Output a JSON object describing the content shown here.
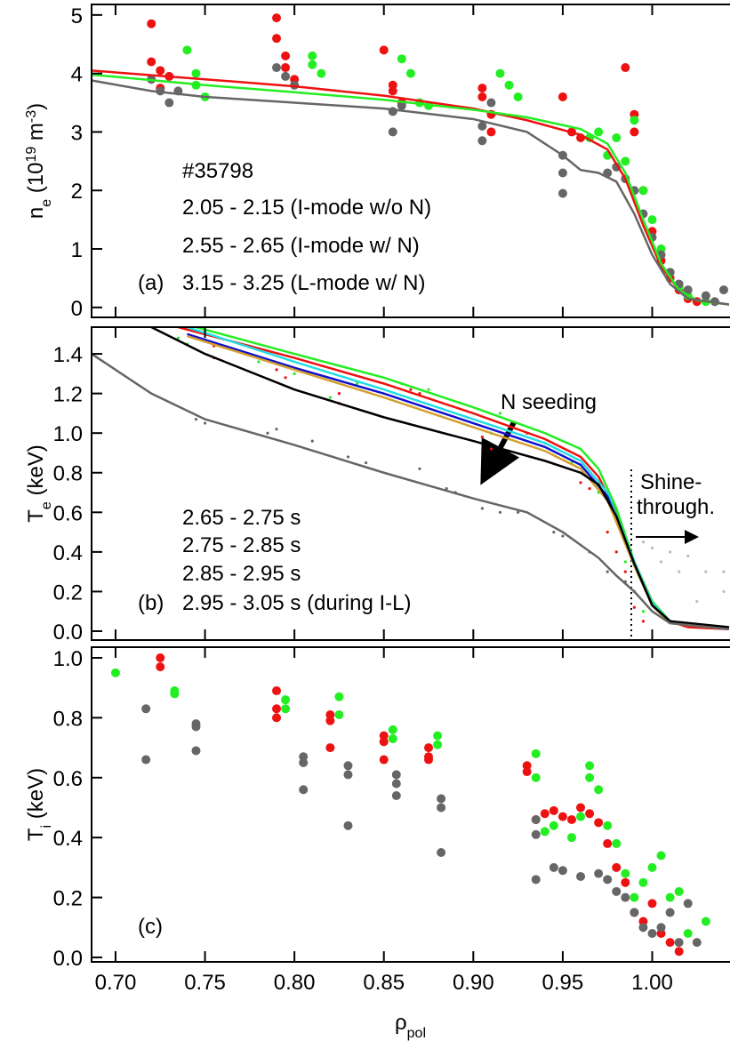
{
  "chart_data": [
    {
      "type": "scatter",
      "panel": "(a)",
      "ylabel": [
        {
          "text": "n"
        },
        {
          "text": "e",
          "shift": "sub"
        },
        {
          "text": " (10"
        },
        {
          "text": "19",
          "shift": "super"
        },
        {
          "text": " m"
        },
        {
          "text": "-3",
          "shift": "super"
        },
        {
          "text": ")"
        }
      ],
      "annotations": [
        "#35798"
      ],
      "xlim": [
        0.6866,
        1.043
      ],
      "ylim": [
        -0.17,
        5.18
      ],
      "yticks": [
        0,
        1,
        2,
        3,
        4,
        5
      ],
      "series": [
        {
          "color": "#ee1111",
          "mode": "markers",
          "x": [
            0.72,
            0.72,
            0.725,
            0.725,
            0.73,
            0.79,
            0.79,
            0.795,
            0.795,
            0.8,
            0.85,
            0.855,
            0.855,
            0.86,
            0.905,
            0.905,
            0.91,
            0.91,
            0.95,
            0.955,
            0.96,
            0.985,
            0.99,
            0.99,
            0.995,
            1.0,
            1.005,
            1.01,
            1.015,
            1.02,
            1.025
          ],
          "values": [
            4.85,
            4.2,
            4.05,
            3.75,
            3.95,
            4.95,
            4.6,
            4.3,
            4.1,
            3.9,
            4.4,
            3.8,
            3.7,
            3.5,
            3.75,
            3.6,
            3.3,
            3.0,
            3.6,
            3.0,
            2.9,
            4.1,
            3.3,
            3.0,
            2.0,
            1.3,
            0.8,
            0.5,
            0.3,
            0.15,
            0.1
          ]
        },
        {
          "color": "#22ee22",
          "mode": "markers",
          "x": [
            0.74,
            0.745,
            0.745,
            0.75,
            0.81,
            0.81,
            0.815,
            0.86,
            0.865,
            0.87,
            0.875,
            0.915,
            0.92,
            0.925,
            0.965,
            0.97,
            0.975,
            0.98,
            0.985,
            0.99,
            0.995,
            1.0,
            1.005,
            1.01,
            1.015,
            1.02,
            1.03
          ],
          "values": [
            4.4,
            4.0,
            3.8,
            3.6,
            4.3,
            4.15,
            4.0,
            4.25,
            4.0,
            3.5,
            3.45,
            4.0,
            3.8,
            3.6,
            2.9,
            3.0,
            2.6,
            2.9,
            2.5,
            3.2,
            2.0,
            1.5,
            1.0,
            0.6,
            0.35,
            0.2,
            0.1
          ]
        },
        {
          "color": "#666666",
          "mode": "markers",
          "x": [
            0.72,
            0.725,
            0.73,
            0.735,
            0.79,
            0.795,
            0.8,
            0.855,
            0.855,
            0.86,
            0.905,
            0.905,
            0.91,
            0.95,
            0.95,
            0.95,
            0.975,
            0.98,
            0.985,
            0.99,
            0.995,
            1.0,
            1.005,
            1.01,
            1.015,
            1.02,
            1.03,
            1.035,
            1.04
          ],
          "values": [
            3.9,
            3.7,
            3.5,
            3.7,
            4.1,
            3.95,
            3.8,
            3.35,
            3.0,
            3.45,
            3.1,
            2.85,
            3.5,
            2.6,
            2.3,
            1.95,
            2.3,
            2.4,
            2.2,
            2.0,
            1.6,
            1.2,
            0.9,
            0.6,
            0.4,
            0.3,
            0.2,
            0.1,
            0.3
          ]
        },
        {
          "name": "2.05 - 2.15 (I-mode w/o N)",
          "color": "#ee1111",
          "mode": "lines",
          "x": [
            0.6866,
            0.75,
            0.8,
            0.85,
            0.9,
            0.93,
            0.96,
            0.975,
            0.985,
            0.995,
            1.005,
            1.015,
            1.025,
            1.043
          ],
          "values": [
            4.05,
            3.9,
            3.78,
            3.62,
            3.4,
            3.2,
            2.95,
            2.7,
            2.2,
            1.4,
            0.7,
            0.3,
            0.12,
            0.05
          ]
        },
        {
          "name": "2.55 - 2.65 (I-mode w/ N)",
          "color": "#22ee22",
          "mode": "lines",
          "x": [
            0.6866,
            0.75,
            0.8,
            0.85,
            0.9,
            0.93,
            0.96,
            0.975,
            0.985,
            0.995,
            1.005,
            1.015,
            1.025,
            1.043
          ],
          "values": [
            3.98,
            3.8,
            3.68,
            3.55,
            3.38,
            3.25,
            3.05,
            2.8,
            2.3,
            1.5,
            0.75,
            0.3,
            0.12,
            0.05
          ]
        },
        {
          "name": "3.15 - 3.25 (L-mode w/ N)",
          "color": "#666666",
          "mode": "lines",
          "x": [
            0.6866,
            0.72,
            0.75,
            0.8,
            0.85,
            0.9,
            0.93,
            0.95,
            0.96,
            0.97,
            0.98,
            0.99,
            1.0,
            1.01,
            1.02,
            1.043
          ],
          "values": [
            3.88,
            3.7,
            3.6,
            3.5,
            3.4,
            3.22,
            3.0,
            2.6,
            2.35,
            2.3,
            2.15,
            1.6,
            0.9,
            0.4,
            0.15,
            0.05
          ]
        }
      ]
    },
    {
      "type": "scatter",
      "panel": "(b)",
      "ylabel": [
        {
          "text": "T"
        },
        {
          "text": "e",
          "shift": "sub"
        },
        {
          "text": " (keV)"
        }
      ],
      "annotations": [
        "N seeding",
        "Shine-",
        "through."
      ],
      "xlim": [
        0.6866,
        1.043
      ],
      "ylim": [
        -0.045,
        1.535
      ],
      "yticks": [
        {
          "value": 0,
          "label": "0.0"
        },
        0.2,
        0.4,
        0.6,
        0.8,
        {
          "value": 1,
          "label": "1.0"
        },
        1.2,
        1.4
      ],
      "series": [
        {
          "color": "#ee1111",
          "mode": "markers",
          "x": [
            0.755,
            0.755,
            0.79,
            0.795,
            0.825,
            0.825,
            0.865,
            0.87,
            0.905,
            0.91,
            0.93,
            0.96,
            0.965,
            0.975,
            0.98,
            0.985,
            0.99,
            0.995
          ],
          "values": [
            1.44,
            1.38,
            1.32,
            1.28,
            1.2,
            1.15,
            1.22,
            1.2,
            0.98,
            0.92,
            1.0,
            0.75,
            0.72,
            0.5,
            0.4,
            0.3,
            0.12,
            0.05
          ]
        },
        {
          "color": "#22ee22",
          "mode": "markers",
          "x": [
            0.735,
            0.74,
            0.78,
            0.8,
            0.82,
            0.835,
            0.86,
            0.875,
            0.91,
            0.915,
            0.94,
            0.955,
            0.97,
            0.985,
            0.99,
            0.995
          ],
          "values": [
            1.48,
            1.45,
            1.36,
            1.3,
            1.18,
            1.25,
            1.25,
            1.22,
            1.0,
            1.1,
            0.95,
            0.85,
            0.7,
            0.35,
            0.2,
            0.1
          ]
        },
        {
          "color": "#666666",
          "mode": "markers",
          "x": [
            0.745,
            0.75,
            0.785,
            0.79,
            0.81,
            0.83,
            0.84,
            0.87,
            0.885,
            0.89,
            0.905,
            0.915,
            0.925,
            0.945,
            0.95,
            0.965,
            0.975,
            0.985,
            0.99
          ],
          "values": [
            1.07,
            1.05,
            1.0,
            1.02,
            0.96,
            0.88,
            0.85,
            0.82,
            0.72,
            0.7,
            0.62,
            0.6,
            0.6,
            0.5,
            0.48,
            0.4,
            0.3,
            0.25,
            0.2
          ]
        },
        {
          "color": "#bbbbbb",
          "mode": "markers",
          "x": [
            0.995,
            1.0,
            1.005,
            1.01,
            1.015,
            1.02,
            1.025,
            1.03,
            1.04,
            1.04
          ],
          "values": [
            0.45,
            0.42,
            0.35,
            0.4,
            0.3,
            0.38,
            0.15,
            0.3,
            0.3,
            0.2
          ]
        },
        {
          "color": "#ee1111",
          "mode": "lines",
          "x": [
            0.735,
            0.8,
            0.85,
            0.9,
            0.94,
            0.96,
            0.97,
            0.98,
            0.99,
            1.0,
            1.01,
            1.02,
            1.043
          ],
          "values": [
            1.535,
            1.38,
            1.25,
            1.1,
            0.97,
            0.88,
            0.78,
            0.6,
            0.35,
            0.15,
            0.05,
            0.02,
            0.01
          ]
        },
        {
          "color": "#22ee22",
          "mode": "lines",
          "x": [
            0.745,
            0.8,
            0.85,
            0.9,
            0.94,
            0.96,
            0.97,
            0.98,
            0.99,
            1.0,
            1.01,
            1.043
          ],
          "values": [
            1.535,
            1.4,
            1.28,
            1.13,
            1.0,
            0.92,
            0.82,
            0.62,
            0.35,
            0.15,
            0.05,
            0.01
          ]
        },
        {
          "name": "2.65 - 2.75 s",
          "color": "#22dde6",
          "mode": "lines",
          "x": [
            0.74,
            0.8,
            0.85,
            0.9,
            0.94,
            0.96,
            0.975,
            0.99,
            1.0,
            1.01,
            1.043
          ],
          "values": [
            1.535,
            1.36,
            1.22,
            1.07,
            0.95,
            0.86,
            0.7,
            0.35,
            0.14,
            0.05,
            0.01
          ]
        },
        {
          "name": "2.75 - 2.85 s",
          "color": "#1010cc",
          "mode": "lines",
          "x": [
            0.74,
            0.8,
            0.85,
            0.9,
            0.94,
            0.96,
            0.975,
            0.99,
            1.0,
            1.01,
            1.043
          ],
          "values": [
            1.5,
            1.33,
            1.2,
            1.05,
            0.93,
            0.84,
            0.68,
            0.34,
            0.13,
            0.05,
            0.01
          ]
        },
        {
          "name": "2.85 - 2.95 s",
          "color": "#d4a030",
          "mode": "lines",
          "x": [
            0.74,
            0.8,
            0.85,
            0.9,
            0.94,
            0.96,
            0.975,
            0.99,
            1.0,
            1.01,
            1.043
          ],
          "values": [
            1.49,
            1.32,
            1.18,
            1.03,
            0.91,
            0.82,
            0.66,
            0.33,
            0.13,
            0.04,
            0.01
          ]
        },
        {
          "name": "2.95 - 3.05 s (during I-L)",
          "color": "#000000",
          "mode": "lines",
          "x": [
            0.72,
            0.75,
            0.8,
            0.85,
            0.9,
            0.94,
            0.96,
            0.97,
            0.98,
            0.99,
            1.0,
            1.01,
            1.043
          ],
          "values": [
            1.535,
            1.4,
            1.22,
            1.08,
            0.96,
            0.86,
            0.8,
            0.74,
            0.58,
            0.34,
            0.13,
            0.05,
            0.02
          ]
        },
        {
          "color": "#666666",
          "mode": "lines",
          "x": [
            0.6866,
            0.72,
            0.75,
            0.8,
            0.85,
            0.9,
            0.93,
            0.95,
            0.97,
            0.98,
            0.99,
            1.0,
            1.01,
            1.043
          ],
          "values": [
            1.4,
            1.2,
            1.07,
            0.94,
            0.8,
            0.67,
            0.6,
            0.5,
            0.37,
            0.28,
            0.2,
            0.1,
            0.04,
            0.01
          ]
        }
      ]
    },
    {
      "type": "scatter",
      "panel": "(c)",
      "ylabel": [
        {
          "text": "T"
        },
        {
          "text": "i",
          "shift": "sub"
        },
        {
          "text": " (keV)"
        }
      ],
      "xlabel": [
        {
          "text": "ρ"
        },
        {
          "text": "pol",
          "shift": "sub"
        }
      ],
      "xlim": [
        0.6866,
        1.043
      ],
      "ylim": [
        -0.015,
        1.0356
      ],
      "xticks": [
        {
          "value": 0.7,
          "label": "0.70"
        },
        0.75,
        {
          "value": 0.8,
          "label": "0.80"
        },
        0.85,
        {
          "value": 0.9,
          "label": "0.90"
        },
        0.95,
        {
          "value": 1,
          "label": "1.00"
        }
      ],
      "yticks": [
        {
          "value": 0,
          "label": "0.0"
        },
        0.2,
        0.4,
        0.6,
        0.8,
        {
          "value": 1,
          "label": "1.0"
        }
      ],
      "series": [
        {
          "color": "#ee1111",
          "mode": "markers",
          "x": [
            0.725,
            0.725,
            0.79,
            0.79,
            0.79,
            0.82,
            0.82,
            0.82,
            0.85,
            0.85,
            0.85,
            0.875,
            0.875,
            0.875,
            0.93,
            0.93,
            0.935,
            0.94,
            0.945,
            0.95,
            0.955,
            0.96,
            0.965,
            0.97,
            0.975,
            0.98,
            0.985,
            0.99,
            0.995,
            1.0,
            1.005,
            1.01,
            1.015
          ],
          "values": [
            1.0,
            0.97,
            0.89,
            0.83,
            0.8,
            0.81,
            0.79,
            0.7,
            0.74,
            0.72,
            0.66,
            0.7,
            0.67,
            0.66,
            0.64,
            0.62,
            0.46,
            0.48,
            0.49,
            0.47,
            0.46,
            0.5,
            0.48,
            0.45,
            0.38,
            0.3,
            0.25,
            0.15,
            0.12,
            0.18,
            0.08,
            0.05,
            0.02
          ]
        },
        {
          "color": "#22ee22",
          "mode": "markers",
          "x": [
            0.7,
            0.733,
            0.733,
            0.795,
            0.795,
            0.825,
            0.825,
            0.855,
            0.855,
            0.88,
            0.88,
            0.935,
            0.935,
            0.94,
            0.945,
            0.955,
            0.96,
            0.965,
            0.965,
            0.97,
            0.975,
            0.98,
            0.985,
            0.99,
            0.995,
            1.0,
            1.005,
            1.01,
            1.015,
            1.02,
            1.03
          ],
          "values": [
            0.95,
            0.89,
            0.88,
            0.86,
            0.83,
            0.87,
            0.81,
            0.76,
            0.73,
            0.74,
            0.71,
            0.68,
            0.6,
            0.42,
            0.44,
            0.4,
            0.47,
            0.64,
            0.6,
            0.56,
            0.44,
            0.38,
            0.28,
            0.2,
            0.25,
            0.3,
            0.34,
            0.2,
            0.22,
            0.08,
            0.12
          ]
        },
        {
          "color": "#666666",
          "mode": "markers",
          "x": [
            0.717,
            0.717,
            0.745,
            0.745,
            0.745,
            0.805,
            0.805,
            0.805,
            0.83,
            0.83,
            0.83,
            0.857,
            0.857,
            0.857,
            0.882,
            0.882,
            0.882,
            0.935,
            0.935,
            0.935,
            0.945,
            0.95,
            0.96,
            0.97,
            0.975,
            0.98,
            0.985,
            0.99,
            0.995,
            1.0,
            1.005,
            1.01,
            1.015,
            1.02,
            1.025
          ],
          "values": [
            0.83,
            0.66,
            0.78,
            0.77,
            0.69,
            0.67,
            0.65,
            0.56,
            0.64,
            0.61,
            0.44,
            0.61,
            0.58,
            0.54,
            0.53,
            0.5,
            0.35,
            0.46,
            0.41,
            0.26,
            0.3,
            0.29,
            0.27,
            0.28,
            0.26,
            0.22,
            0.2,
            0.15,
            0.1,
            0.08,
            0.1,
            0.15,
            0.05,
            0.18,
            0.05
          ]
        }
      ]
    }
  ]
}
